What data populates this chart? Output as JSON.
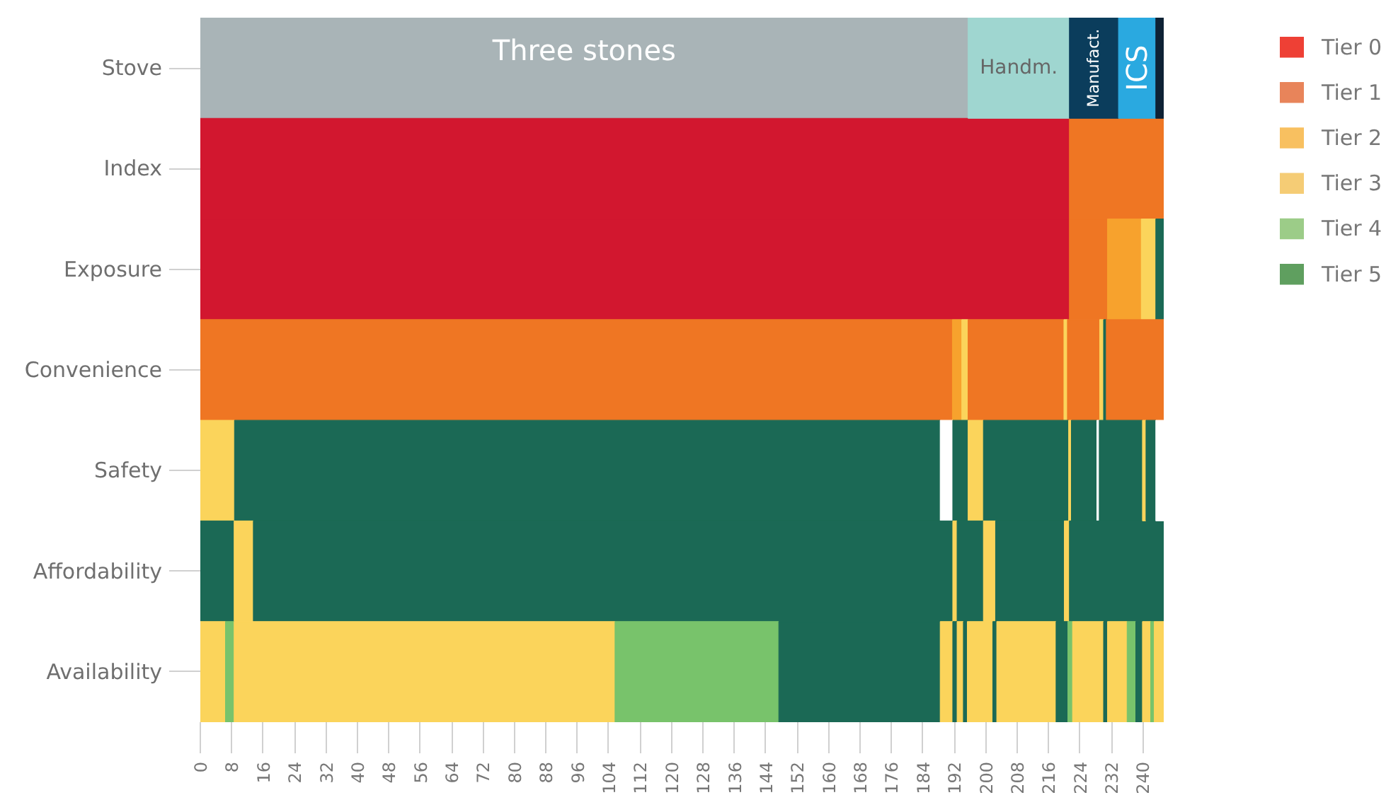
{
  "chart_data": {
    "type": "bar",
    "orientation": "horizontal",
    "stacked": true,
    "categories": [
      "Stove",
      "Index",
      "Exposure",
      "Convenience",
      "Safety",
      "Affordability",
      "Availability"
    ],
    "xlim": [
      0,
      245.5
    ],
    "xticks": [
      0,
      8,
      16,
      24,
      32,
      40,
      48,
      56,
      64,
      72,
      80,
      88,
      96,
      104,
      112,
      120,
      128,
      136,
      144,
      152,
      160,
      168,
      176,
      184,
      192,
      200,
      208,
      216,
      224,
      232,
      240
    ],
    "legend": "top right",
    "series": [
      {
        "values": [
          195.5,
          221.3,
          221.3,
          191.5,
          8.7,
          8.6,
          6.4
        ],
        "colors": [
          "#a9b4b7",
          "#d2172f",
          "#d2172f",
          "#ef7623",
          "#fbd45b",
          "#1b6955",
          "#fbd45b"
        ]
      },
      {
        "values": [
          25.8,
          24.2,
          9.7,
          2.4,
          179.7,
          4.9,
          2.2
        ],
        "colors": [
          "#9fd6d0",
          "#ef7623",
          "#ef7623",
          "#f7a22d",
          "#1b6955",
          "#fbd45b",
          "#78c36b"
        ]
      },
      {
        "values": [
          12.5,
          null,
          8.6,
          1.6,
          3.2,
          178.1,
          97.0
        ],
        "colors": [
          "#0b3d5c",
          null,
          "#f7a22d",
          "#fbd45b",
          "#ffffff",
          "#1b6955",
          "#fbd45b"
        ]
      },
      {
        "values": [
          9.5,
          null,
          3.7,
          24.4,
          3.9,
          1.1,
          41.7
        ],
        "colors": [
          "#2aa9e0",
          null,
          "#fbd45b",
          "#ef7623",
          "#1b6955",
          "#fbd45b",
          "#78c36b"
        ]
      },
      {
        "values": [
          2.2,
          null,
          2.2,
          0.9,
          3.9,
          6.7,
          41.1
        ],
        "colors": [
          "#0e2235",
          null,
          "#1b6955",
          "#fbd45b",
          "#fbd45b",
          "#1b6955",
          "#1b6955"
        ]
      },
      {
        "values": [
          null,
          null,
          null,
          8.2,
          21.7,
          3.1,
          3.2
        ],
        "colors": [
          null,
          null,
          null,
          "#ef7623",
          "#1b6955",
          "#fbd45b",
          "#fbd45b"
        ]
      },
      {
        "values": [
          null,
          null,
          null,
          1.0,
          0.7,
          17.5,
          1.1
        ],
        "colors": [
          null,
          null,
          null,
          "#fbd45b",
          "#fbd45b",
          "#1b6955",
          "#1b6955"
        ]
      },
      {
        "values": [
          null,
          null,
          null,
          0.7,
          6.5,
          1.3,
          1.6
        ],
        "colors": [
          null,
          null,
          null,
          "#1b6955",
          "#1b6955",
          "#fbd45b",
          "#fbd45b"
        ]
      },
      {
        "values": [
          null,
          null,
          null,
          14.8,
          0.6,
          24.2,
          1.0
        ],
        "colors": [
          null,
          null,
          null,
          "#ef7623",
          "#ffffff",
          "#1b6955",
          "#1b6955"
        ]
      },
      {
        "values": [
          null,
          null,
          null,
          null,
          11.0,
          null,
          6.5
        ],
        "colors": [
          null,
          null,
          null,
          null,
          "#1b6955",
          null,
          "#fbd45b"
        ]
      },
      {
        "values": [
          null,
          null,
          null,
          null,
          0.9,
          null,
          1.0
        ],
        "colors": [
          null,
          null,
          null,
          null,
          "#fbd45b",
          null,
          "#1b6955"
        ]
      },
      {
        "values": [
          null,
          null,
          null,
          null,
          2.5,
          null,
          15.1
        ],
        "colors": [
          null,
          null,
          null,
          null,
          "#1b6955",
          null,
          "#fbd45b"
        ]
      },
      {
        "values": [
          null,
          null,
          null,
          null,
          2.2,
          null,
          3.0
        ],
        "colors": [
          null,
          null,
          null,
          null,
          "#ffffff",
          null,
          "#1b6955"
        ]
      },
      {
        "values": [
          null,
          null,
          null,
          null,
          null,
          null,
          1.2
        ],
        "colors": [
          null,
          null,
          null,
          null,
          null,
          null,
          "#78c36b"
        ]
      },
      {
        "values": [
          null,
          null,
          null,
          null,
          null,
          null,
          7.9
        ],
        "colors": [
          null,
          null,
          null,
          null,
          null,
          null,
          "#fbd45b"
        ]
      },
      {
        "values": [
          null,
          null,
          null,
          null,
          null,
          null,
          1.0
        ],
        "colors": [
          null,
          null,
          null,
          null,
          null,
          null,
          "#1b6955"
        ]
      },
      {
        "values": [
          null,
          null,
          null,
          null,
          null,
          null,
          5.0
        ],
        "colors": [
          null,
          null,
          null,
          null,
          null,
          null,
          "#fbd45b"
        ]
      },
      {
        "values": [
          null,
          null,
          null,
          null,
          null,
          null,
          2.2
        ],
        "colors": [
          null,
          null,
          null,
          null,
          null,
          null,
          "#78c36b"
        ]
      },
      {
        "values": [
          null,
          null,
          null,
          null,
          null,
          null,
          1.7
        ],
        "colors": [
          null,
          null,
          null,
          null,
          null,
          null,
          "#1b6955"
        ]
      },
      {
        "values": [
          null,
          null,
          null,
          null,
          null,
          null,
          2.1
        ],
        "colors": [
          null,
          null,
          null,
          null,
          null,
          null,
          "#fbd45b"
        ]
      },
      {
        "values": [
          null,
          null,
          null,
          null,
          null,
          null,
          0.9
        ],
        "colors": [
          null,
          null,
          null,
          null,
          null,
          null,
          "#78c36b"
        ]
      },
      {
        "values": [
          null,
          null,
          null,
          null,
          null,
          null,
          2.6
        ],
        "colors": [
          null,
          null,
          null,
          null,
          null,
          null,
          "#fbd45b"
        ]
      },
      {
        "name": "Tier 0",
        "color": "#ee4035",
        "values": [
          null,
          null,
          null,
          null,
          null,
          null,
          null
        ]
      },
      {
        "name": "Tier 1",
        "color": "#e8845a",
        "values": [
          null,
          null,
          null,
          null,
          null,
          null,
          null
        ]
      },
      {
        "name": "Tier 2",
        "color": "#f8c060",
        "values": [
          null,
          null,
          null,
          null,
          null,
          null,
          null
        ]
      },
      {
        "name": "Tier 3",
        "color": "#f5cc75",
        "values": [
          null,
          null,
          null,
          null,
          null,
          null,
          null
        ]
      },
      {
        "name": "Tier 4",
        "color": "#9ccc88",
        "values": [
          null,
          null,
          null,
          null,
          null,
          null,
          null
        ]
      },
      {
        "name": "Tier 5",
        "color": "#5f9f5f",
        "values": [
          null,
          null,
          null,
          null,
          null,
          null,
          null
        ]
      }
    ],
    "annotations": [
      "Three stones",
      "Handm.",
      "Manufact.",
      "ICS"
    ]
  }
}
